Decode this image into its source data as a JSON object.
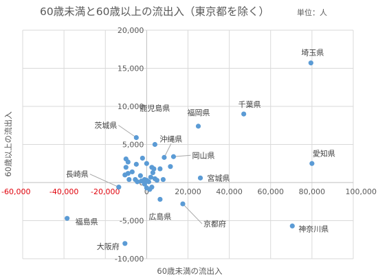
{
  "chart_data": {
    "type": "scatter",
    "title": "60歳未満と60歳以上の流出入（東京都を除く）",
    "unit_note": "単位：人",
    "xlabel": "60歳未満の流出入",
    "ylabel": "60歳以上の流出入",
    "xlim": [
      -60000,
      100000
    ],
    "ylim": [
      -10000,
      20000
    ],
    "x_ticks": [
      "-60,000",
      "-40,000",
      "-20,000",
      "0",
      "20,000",
      "40,000",
      "60,000",
      "80,000",
      "100,000"
    ],
    "x_tick_values": [
      -60000,
      -40000,
      -20000,
      0,
      20000,
      40000,
      60000,
      80000,
      100000
    ],
    "negative_tick_color": "#e0000a",
    "y_ticks": [
      "-10,000",
      "-5,000",
      "0",
      "5,000",
      "10,000",
      "15,000",
      "20,000"
    ],
    "y_tick_values": [
      -10000,
      -5000,
      0,
      5000,
      10000,
      15000,
      20000
    ],
    "grid": true,
    "point_color": "#5b9bd5",
    "series": [
      {
        "points": [
          {
            "x": 79500,
            "y": 15700,
            "label": "埼玉県"
          },
          {
            "x": 47000,
            "y": 9000,
            "label": "千葉県"
          },
          {
            "x": 25000,
            "y": 7400,
            "label": "福岡県"
          },
          {
            "x": 4000,
            "y": 5000,
            "label": "鹿児島県"
          },
          {
            "x": -5000,
            "y": 5900,
            "label": "茨城県"
          },
          {
            "x": 8500,
            "y": 3300,
            "label": "沖縄県"
          },
          {
            "x": 13000,
            "y": 3400,
            "label": "岡山県"
          },
          {
            "x": 80000,
            "y": 2500,
            "label": "愛知県"
          },
          {
            "x": 26000,
            "y": 600,
            "label": "宮城県"
          },
          {
            "x": -13500,
            "y": -600,
            "label": "長崎県"
          },
          {
            "x": 6500,
            "y": -2200,
            "label": "広島県"
          },
          {
            "x": 17500,
            "y": -2800,
            "label": "京都府"
          },
          {
            "x": -38500,
            "y": -4700,
            "label": "福島県"
          },
          {
            "x": 70500,
            "y": -5700,
            "label": "神奈川県"
          },
          {
            "x": -10500,
            "y": -8000,
            "label": "大阪府"
          },
          {
            "x": -9000,
            "y": 1200
          },
          {
            "x": -10500,
            "y": 1000
          },
          {
            "x": -10000,
            "y": 2000
          },
          {
            "x": -10000,
            "y": 3100
          },
          {
            "x": -9000,
            "y": 2700
          },
          {
            "x": -7000,
            "y": 1400
          },
          {
            "x": -5000,
            "y": 2400
          },
          {
            "x": -3000,
            "y": 900
          },
          {
            "x": -5500,
            "y": 400
          },
          {
            "x": -8500,
            "y": 400
          },
          {
            "x": -4500,
            "y": 100
          },
          {
            "x": -2500,
            "y": 200
          },
          {
            "x": -1000,
            "y": 400
          },
          {
            "x": 0,
            "y": 300
          },
          {
            "x": 1000,
            "y": 100
          },
          {
            "x": 2000,
            "y": 700
          },
          {
            "x": 3000,
            "y": 1300
          },
          {
            "x": 3500,
            "y": 1800
          },
          {
            "x": -2000,
            "y": 3200
          },
          {
            "x": 0,
            "y": 2500
          },
          {
            "x": 2500,
            "y": 2000
          },
          {
            "x": 4000,
            "y": 500
          },
          {
            "x": 5000,
            "y": 300
          },
          {
            "x": 6500,
            "y": 1800
          },
          {
            "x": 8000,
            "y": 400
          },
          {
            "x": 11500,
            "y": 2100
          },
          {
            "x": -1000,
            "y": -200
          },
          {
            "x": 0,
            "y": -700
          },
          {
            "x": 1500,
            "y": -900
          },
          {
            "x": 2500,
            "y": -600
          }
        ]
      }
    ]
  }
}
